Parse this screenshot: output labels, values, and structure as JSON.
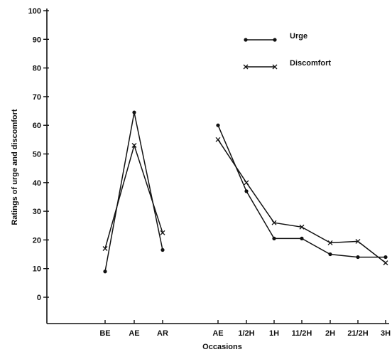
{
  "chart_data": {
    "type": "line",
    "title": "",
    "xlabel": "Occasions",
    "ylabel": "Ratings of urge and discomfort",
    "ylim": [
      0,
      100
    ],
    "yticks": [
      "0",
      "10",
      "20",
      "30",
      "40",
      "50",
      "60",
      "70",
      "80",
      "90",
      "100"
    ],
    "categories": [
      "BE",
      "AE",
      "AR",
      "AE",
      "1/2H",
      "1H",
      "11/2H",
      "2H",
      "21/2H",
      "3H"
    ],
    "groups": [
      {
        "name": "",
        "categories": [
          0,
          1,
          2
        ]
      },
      {
        "name": "",
        "categories": [
          3,
          4,
          5,
          6,
          7,
          8,
          9
        ]
      }
    ],
    "series": [
      {
        "name": "Urge",
        "marker": "dot",
        "values": [
          9,
          64.5,
          16.5,
          60,
          37,
          20.5,
          20.5,
          15,
          14,
          14
        ]
      },
      {
        "name": "Discomfort",
        "marker": "x",
        "values": [
          17,
          53,
          22.5,
          55,
          40,
          26,
          24.5,
          19,
          19.5,
          12
        ]
      }
    ],
    "legend": "top-right",
    "grid": false
  }
}
